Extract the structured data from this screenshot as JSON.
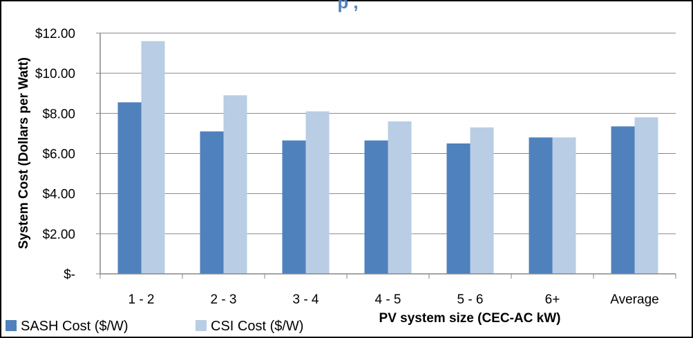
{
  "chart_data": {
    "type": "bar",
    "title": "",
    "categories": [
      "1 - 2",
      "2 - 3",
      "3 - 4",
      "4 - 5",
      "5 - 6",
      "6+",
      "Average"
    ],
    "series": [
      {
        "name": "SASH Cost ($/W)",
        "color": "#4f81bd",
        "values": [
          8.55,
          7.1,
          6.65,
          6.65,
          6.5,
          6.8,
          7.35
        ]
      },
      {
        "name": "CSI Cost ($/W)",
        "color": "#b9cde5",
        "values": [
          11.6,
          8.9,
          8.1,
          7.6,
          7.3,
          6.8,
          7.8
        ]
      }
    ],
    "ylim": [
      0,
      12
    ],
    "yticks": [
      0,
      2,
      4,
      6,
      8,
      10,
      12
    ],
    "ytick_labels": [
      "$-",
      "$2.00",
      "$4.00",
      "$6.00",
      "$8.00",
      "$10.00",
      "$12.00"
    ],
    "xlabel": "PV system size (CEC-AC kW)",
    "ylabel": "System Cost (Dollars per Watt)",
    "grid": true,
    "legend_position": "bottom-left"
  }
}
